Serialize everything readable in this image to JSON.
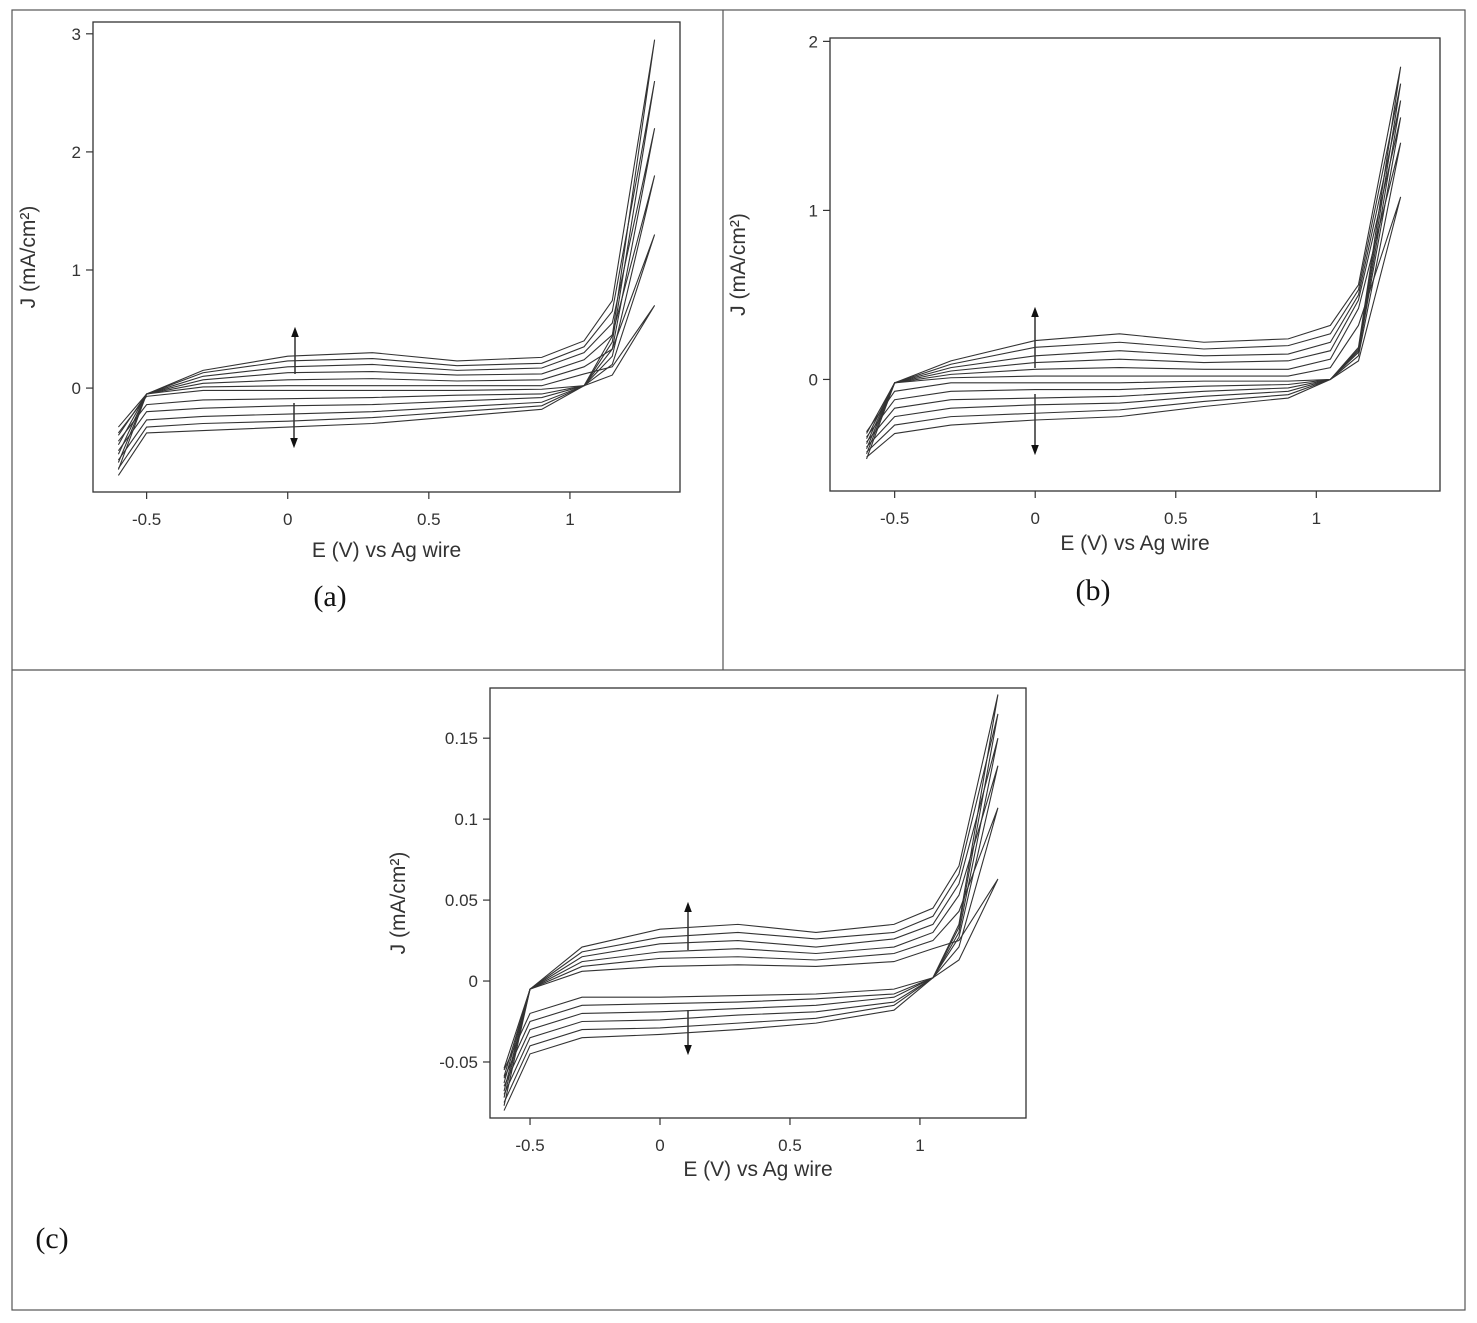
{
  "chart_data": [
    {
      "type": "line",
      "panel_label": "(a)",
      "x_label": "E (V) vs Ag wire",
      "y_label": "J (mA/cm²)",
      "xlim": [
        -0.69,
        1.39
      ],
      "ylim": [
        -0.88,
        3.1
      ],
      "xticks": [
        -0.5,
        0,
        0.5,
        1
      ],
      "yticks": [
        0,
        1,
        2,
        3
      ],
      "x": [
        -0.6,
        -0.5,
        -0.3,
        0,
        0.3,
        0.6,
        0.9,
        1.05,
        1.15,
        1.3,
        1.15,
        1.05,
        0.9,
        0.6,
        0.3,
        0,
        -0.3,
        -0.5,
        -0.6
      ],
      "series": [
        {
          "color": "#333333",
          "values": [
            -0.33,
            -0.05,
            0.01,
            0.02,
            0.02,
            0.02,
            0.02,
            0.12,
            0.18,
            0.7,
            0.11,
            0.02,
            -0.01,
            -0.02,
            -0.02,
            -0.02,
            -0.02,
            -0.07,
            -0.38
          ]
        },
        {
          "color": "#333333",
          "values": [
            -0.4,
            -0.05,
            0.04,
            0.07,
            0.08,
            0.06,
            0.07,
            0.18,
            0.33,
            1.3,
            0.2,
            0.02,
            -0.05,
            -0.06,
            -0.08,
            -0.09,
            -0.1,
            -0.14,
            -0.45
          ]
        },
        {
          "color": "#333333",
          "values": [
            -0.48,
            -0.05,
            0.07,
            0.13,
            0.14,
            0.11,
            0.12,
            0.24,
            0.45,
            1.8,
            0.27,
            0.02,
            -0.08,
            -0.11,
            -0.14,
            -0.15,
            -0.17,
            -0.2,
            -0.53
          ]
        },
        {
          "color": "#333333",
          "values": [
            -0.56,
            -0.05,
            0.1,
            0.18,
            0.2,
            0.15,
            0.17,
            0.3,
            0.55,
            2.2,
            0.33,
            0.02,
            -0.12,
            -0.16,
            -0.2,
            -0.22,
            -0.24,
            -0.27,
            -0.61
          ]
        },
        {
          "color": "#333333",
          "values": [
            -0.63,
            -0.05,
            0.13,
            0.23,
            0.25,
            0.19,
            0.21,
            0.35,
            0.65,
            2.6,
            0.39,
            0.02,
            -0.15,
            -0.2,
            -0.25,
            -0.28,
            -0.3,
            -0.33,
            -0.68
          ]
        },
        {
          "color": "#333333",
          "values": [
            -0.69,
            -0.05,
            0.15,
            0.27,
            0.3,
            0.23,
            0.26,
            0.4,
            0.74,
            2.95,
            0.44,
            0.02,
            -0.18,
            -0.24,
            -0.3,
            -0.33,
            -0.36,
            -0.38,
            -0.74
          ]
        }
      ]
    },
    {
      "type": "line",
      "panel_label": "(b)",
      "x_label": "E (V) vs Ag wire",
      "y_label": "J (mA/cm²)",
      "xlim": [
        -0.73,
        1.44
      ],
      "ylim": [
        -0.66,
        2.02
      ],
      "xticks": [
        -0.5,
        0,
        0.5,
        1
      ],
      "yticks": [
        0,
        1,
        2
      ],
      "x": [
        -0.6,
        -0.5,
        -0.3,
        0,
        0.3,
        0.6,
        0.9,
        1.05,
        1.15,
        1.3,
        1.15,
        1.05,
        0.9,
        0.6,
        0.3,
        0,
        -0.3,
        -0.5,
        -0.6
      ],
      "series": [
        {
          "color": "#333333",
          "values": [
            -0.32,
            -0.02,
            0.01,
            0.02,
            0.02,
            0.02,
            0.02,
            0.07,
            0.32,
            1.08,
            0.11,
            0,
            -0.01,
            -0.01,
            -0.02,
            -0.02,
            -0.02,
            -0.07,
            -0.31
          ]
        },
        {
          "color": "#333333",
          "values": [
            -0.35,
            -0.02,
            0.03,
            0.06,
            0.07,
            0.06,
            0.06,
            0.12,
            0.42,
            1.4,
            0.14,
            0,
            -0.03,
            -0.04,
            -0.06,
            -0.06,
            -0.07,
            -0.12,
            -0.34
          ]
        },
        {
          "color": "#333333",
          "values": [
            -0.38,
            -0.02,
            0.05,
            0.1,
            0.12,
            0.1,
            0.11,
            0.17,
            0.47,
            1.55,
            0.16,
            0,
            -0.05,
            -0.07,
            -0.1,
            -0.11,
            -0.12,
            -0.17,
            -0.37
          ]
        },
        {
          "color": "#333333",
          "values": [
            -0.41,
            -0.02,
            0.07,
            0.14,
            0.17,
            0.14,
            0.15,
            0.22,
            0.5,
            1.65,
            0.17,
            0,
            -0.07,
            -0.1,
            -0.14,
            -0.15,
            -0.17,
            -0.22,
            -0.4
          ]
        },
        {
          "color": "#333333",
          "values": [
            -0.44,
            -0.02,
            0.09,
            0.19,
            0.22,
            0.18,
            0.2,
            0.27,
            0.53,
            1.75,
            0.18,
            0,
            -0.09,
            -0.13,
            -0.18,
            -0.2,
            -0.22,
            -0.27,
            -0.43
          ]
        },
        {
          "color": "#333333",
          "values": [
            -0.47,
            -0.02,
            0.11,
            0.23,
            0.27,
            0.22,
            0.24,
            0.32,
            0.56,
            1.85,
            0.19,
            0,
            -0.11,
            -0.16,
            -0.22,
            -0.24,
            -0.27,
            -0.32,
            -0.46
          ]
        }
      ]
    },
    {
      "type": "line",
      "panel_label": "(c)",
      "x_label": "E (V) vs Ag wire",
      "y_label": "J (mA/cm²)",
      "xlim": [
        -0.654,
        1.408
      ],
      "ylim": [
        -0.0846,
        0.181
      ],
      "xticks": [
        -0.5,
        0,
        0.5,
        1
      ],
      "yticks": [
        -0.05,
        0,
        0.05,
        0.1,
        0.15
      ],
      "x": [
        -0.6,
        -0.5,
        -0.3,
        0,
        0.3,
        0.6,
        0.9,
        1.05,
        1.15,
        1.3,
        1.15,
        1.05,
        0.9,
        0.6,
        0.3,
        0,
        -0.3,
        -0.5,
        -0.6
      ],
      "series": [
        {
          "color": "#333333",
          "values": [
            -0.054,
            -0.005,
            0.006,
            0.009,
            0.01,
            0.009,
            0.012,
            0.02,
            0.025,
            0.063,
            0.013,
            0.002,
            -0.005,
            -0.008,
            -0.009,
            -0.01,
            -0.01,
            -0.02,
            -0.055
          ]
        },
        {
          "color": "#333333",
          "values": [
            -0.059,
            -0.005,
            0.009,
            0.014,
            0.015,
            0.013,
            0.017,
            0.025,
            0.043,
            0.107,
            0.021,
            0.002,
            -0.008,
            -0.011,
            -0.013,
            -0.014,
            -0.015,
            -0.025,
            -0.06
          ]
        },
        {
          "color": "#333333",
          "values": [
            -0.063,
            -0.005,
            0.012,
            0.018,
            0.02,
            0.017,
            0.021,
            0.03,
            0.053,
            0.133,
            0.027,
            0.002,
            -0.01,
            -0.015,
            -0.017,
            -0.019,
            -0.02,
            -0.03,
            -0.065
          ]
        },
        {
          "color": "#333333",
          "values": [
            -0.068,
            -0.005,
            0.015,
            0.023,
            0.025,
            0.021,
            0.026,
            0.035,
            0.06,
            0.15,
            0.03,
            0.002,
            -0.013,
            -0.019,
            -0.021,
            -0.024,
            -0.025,
            -0.035,
            -0.07
          ]
        },
        {
          "color": "#333333",
          "values": [
            -0.072,
            -0.005,
            0.018,
            0.027,
            0.03,
            0.026,
            0.03,
            0.04,
            0.066,
            0.165,
            0.033,
            0.002,
            -0.015,
            -0.023,
            -0.026,
            -0.029,
            -0.03,
            -0.04,
            -0.075
          ]
        },
        {
          "color": "#333333",
          "values": [
            -0.077,
            -0.005,
            0.021,
            0.032,
            0.035,
            0.03,
            0.035,
            0.045,
            0.071,
            0.177,
            0.035,
            0.002,
            -0.018,
            -0.026,
            -0.03,
            -0.033,
            -0.035,
            -0.045,
            -0.08
          ]
        }
      ]
    }
  ]
}
